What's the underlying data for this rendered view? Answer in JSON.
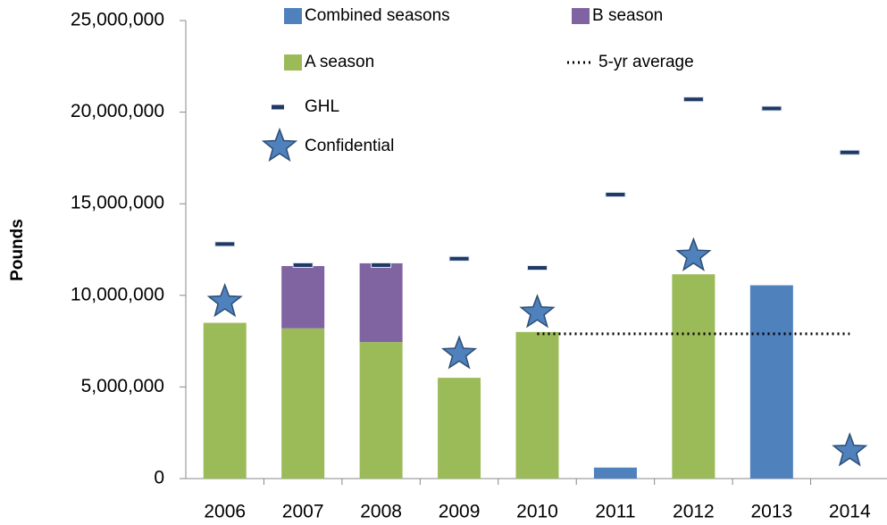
{
  "chart_data": {
    "type": "bar",
    "y_label": "Pounds",
    "categories": [
      "2006",
      "2007",
      "2008",
      "2009",
      "2010",
      "2011",
      "2012",
      "2013",
      "2014"
    ],
    "series": [
      {
        "name": "Combined seasons",
        "type": "bar",
        "color": "#4f81bd",
        "values": [
          null,
          null,
          null,
          null,
          null,
          600000,
          null,
          10550000,
          null
        ]
      },
      {
        "name": "B season",
        "type": "bar",
        "color": "#8064a2",
        "values": [
          null,
          3400000,
          4300000,
          null,
          null,
          null,
          null,
          null,
          null
        ]
      },
      {
        "name": "A season",
        "type": "bar",
        "color": "#9bbb59",
        "values": [
          8500000,
          8200000,
          7450000,
          5500000,
          8000000,
          null,
          11150000,
          null,
          null
        ]
      },
      {
        "name": "5-yr average",
        "type": "line",
        "linestyle": "dotted",
        "color": "#000000",
        "values": [
          null,
          null,
          null,
          null,
          7900000,
          7900000,
          7900000,
          7900000,
          7900000
        ]
      },
      {
        "name": "GHL",
        "type": "dash",
        "color": "#1f3864",
        "values": [
          12800000,
          11650000,
          11650000,
          12000000,
          11500000,
          15500000,
          20700000,
          20200000,
          17800000
        ]
      },
      {
        "name": "Confidential",
        "type": "star",
        "color": "#4f81bd",
        "values": [
          9650000,
          null,
          null,
          6800000,
          9050000,
          null,
          12150000,
          null,
          1500000
        ]
      }
    ],
    "ylim": [
      0,
      25000000
    ],
    "yticks": [
      0,
      {
        "value": 5000000,
        "label": "5,000,000"
      },
      {
        "value": 10000000,
        "label": "10,000,000"
      },
      {
        "value": 15000000,
        "label": "15,000,000"
      },
      {
        "value": 20000000,
        "label": "20,000,000"
      },
      {
        "value": 25000000,
        "label": "25,000,000"
      }
    ],
    "grid": false
  }
}
